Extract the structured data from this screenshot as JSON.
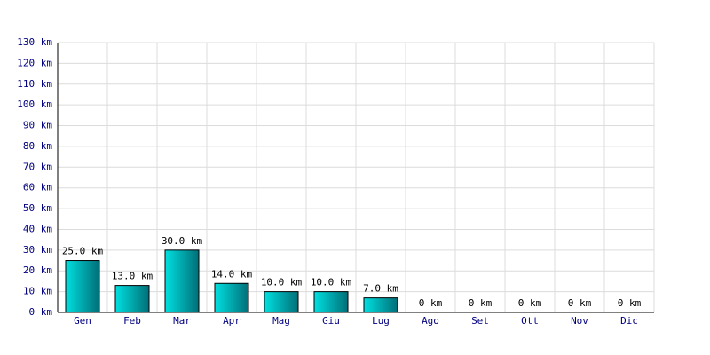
{
  "chart_data": {
    "type": "bar",
    "categories": [
      "Gen",
      "Feb",
      "Mar",
      "Apr",
      "Mag",
      "Giu",
      "Lug",
      "Ago",
      "Set",
      "Ott",
      "Nov",
      "Dic"
    ],
    "values": [
      25,
      13,
      30,
      14,
      10,
      10,
      7,
      0,
      0,
      0,
      0,
      0
    ],
    "value_labels": [
      "25.0 km",
      "13.0 km",
      "30.0 km",
      "14.0 km",
      "10.0 km",
      "10.0 km",
      "7.0 km",
      "0 km",
      "0 km",
      "0 km",
      "0 km",
      "0 km"
    ],
    "ylim": [
      0,
      130
    ],
    "yticks": [
      {
        "value": 0,
        "label": "0 km"
      },
      {
        "value": 10,
        "label": "10 km"
      },
      {
        "value": 20,
        "label": "20 km"
      },
      {
        "value": 30,
        "label": "30 km"
      },
      {
        "value": 40,
        "label": "40 km"
      },
      {
        "value": 50,
        "label": "50 km"
      },
      {
        "value": 60,
        "label": "60 km"
      },
      {
        "value": 70,
        "label": "70 km"
      },
      {
        "value": 80,
        "label": "80 km"
      },
      {
        "value": 90,
        "label": "90 km"
      },
      {
        "value": 100,
        "label": "100 km"
      },
      {
        "value": 110,
        "label": "110 km"
      },
      {
        "value": 120,
        "label": "120 km"
      },
      {
        "value": 130,
        "label": "130 km"
      }
    ],
    "grid": true
  }
}
